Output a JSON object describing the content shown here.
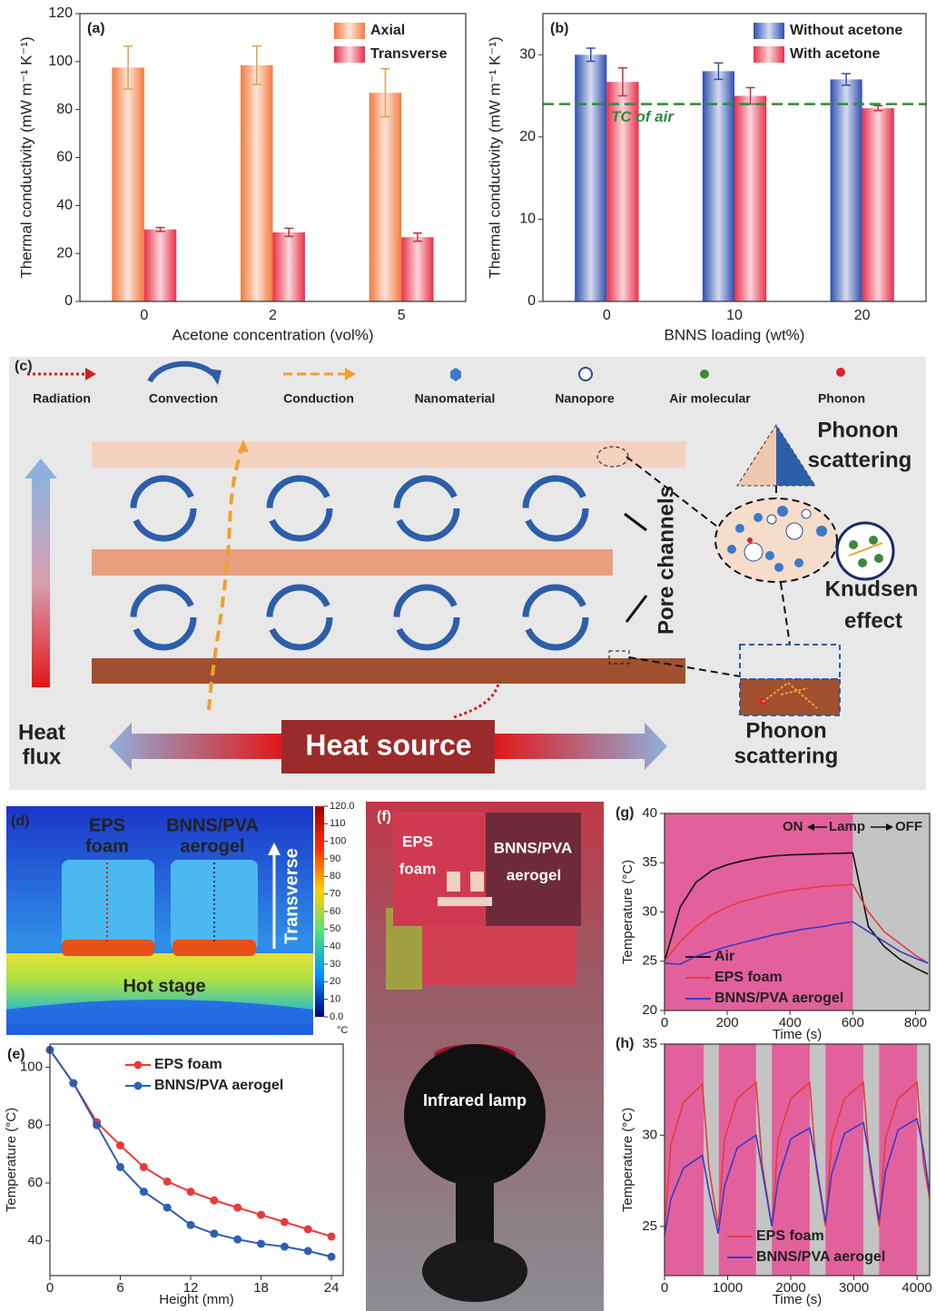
{
  "chart_data": [
    {
      "type": "bar",
      "panel_label": "(a)",
      "x_label": "Acetone concentration (vol%)",
      "y_label": "Thermal conductivity (mW m⁻¹ K⁻¹)",
      "categories": [
        "0",
        "2",
        "5"
      ],
      "series": [
        {
          "name": "Axial",
          "color": "#f47a3c",
          "error_color": "#e0a050",
          "values": [
            97.5,
            98.5,
            87
          ],
          "errors": [
            9,
            8,
            10
          ]
        },
        {
          "name": "Transverse",
          "color": "#e8304a",
          "error_color": "#c03040",
          "values": [
            30,
            28.8,
            26.8
          ],
          "errors": [
            0.8,
            1.7,
            1.7
          ]
        }
      ],
      "ylim": [
        0,
        120
      ],
      "yticks": [
        0,
        20,
        40,
        60,
        80,
        100,
        120
      ],
      "legend": "upper right"
    },
    {
      "type": "bar",
      "panel_label": "(b)",
      "x_label": "BNNS loading (wt%)",
      "y_label": "Thermal conductivity (mW m⁻¹ K⁻¹)",
      "categories": [
        "0",
        "10",
        "20"
      ],
      "series": [
        {
          "name": "Without acetone",
          "color": "#2f4fb0",
          "error_color": "#2f4fb0",
          "values": [
            30,
            28,
            27
          ],
          "errors": [
            0.8,
            1,
            0.7
          ]
        },
        {
          "name": "With acetone",
          "color": "#e8304a",
          "error_color": "#c03040",
          "values": [
            26.7,
            25,
            23.5
          ],
          "errors": [
            1.7,
            1,
            0.3
          ]
        }
      ],
      "reference_line": {
        "value": 24,
        "label": "TC of air",
        "color": "#2e8b3a"
      },
      "ylim": [
        0,
        35
      ],
      "yticks": [
        0,
        10,
        20,
        30
      ],
      "legend": "upper right"
    },
    {
      "type": "line",
      "panel_label": "(e)",
      "x_label": "Height (mm)",
      "y_label": "Temperature (°C)",
      "x": [
        0,
        2,
        4,
        6,
        8,
        10,
        12,
        14,
        16,
        18,
        20,
        22,
        24
      ],
      "series": [
        {
          "name": "EPS foam",
          "color": "#e83a3a",
          "values": [
            106,
            94.5,
            81,
            73,
            65.5,
            60.5,
            57,
            54,
            51.5,
            49,
            46.5,
            44,
            41.5
          ]
        },
        {
          "name": "BNNS/PVA aerogel",
          "color": "#2f5fb0",
          "values": [
            106,
            94.5,
            80,
            65.5,
            57,
            51.5,
            45.5,
            42.5,
            40.5,
            39,
            38,
            36.5,
            34.5
          ]
        }
      ],
      "markers": true,
      "xlim": [
        0,
        25
      ],
      "xticks": [
        0,
        6,
        12,
        18,
        24
      ],
      "ylim": [
        28,
        108
      ],
      "yticks": [
        40,
        60,
        80,
        100
      ],
      "legend": "upper right"
    },
    {
      "type": "line",
      "panel_label": "(g)",
      "x_label": "Time (s)",
      "y_label": "Temperature (°C)",
      "x": [
        0,
        50,
        100,
        150,
        200,
        250,
        300,
        350,
        400,
        450,
        500,
        550,
        600,
        650,
        700,
        750,
        800,
        840
      ],
      "series": [
        {
          "name": "Air",
          "color": "#111111",
          "values": [
            25,
            30.5,
            33,
            34.2,
            34.8,
            35.2,
            35.5,
            35.7,
            35.8,
            35.85,
            35.9,
            35.95,
            36,
            28.5,
            26.5,
            25.2,
            24.3,
            23.7
          ]
        },
        {
          "name": "EPS foam",
          "color": "#e83a3a",
          "values": [
            25,
            27,
            28.5,
            29.7,
            30.5,
            31.1,
            31.5,
            31.9,
            32.2,
            32.4,
            32.6,
            32.7,
            32.8,
            30,
            28,
            26.8,
            25.6,
            24.8
          ]
        },
        {
          "name": "BNNS/PVA aerogel",
          "color": "#3a3ac8",
          "values": [
            24.8,
            24.7,
            25.5,
            26,
            26.5,
            26.9,
            27.3,
            27.7,
            28,
            28.3,
            28.5,
            28.8,
            29,
            28,
            27,
            26,
            25.3,
            24.8
          ]
        }
      ],
      "shaded_regions": [
        {
          "from": 0,
          "to": 600,
          "color": "#e2619c"
        }
      ],
      "background": "#c4c4c4",
      "annotation": {
        "on": "ON",
        "lamp": "Lamp",
        "off": "OFF"
      },
      "xlim": [
        0,
        845
      ],
      "xticks": [
        0,
        200,
        400,
        600,
        800
      ],
      "ylim": [
        20,
        40
      ],
      "yticks": [
        20,
        25,
        30,
        35,
        40
      ],
      "legend": "lower left"
    },
    {
      "type": "line",
      "panel_label": "(h)",
      "x_label": "Time (s)",
      "y_label": "Temperature (°C)",
      "x": [
        0,
        100,
        300,
        600,
        700,
        850,
        950,
        1150,
        1450,
        1550,
        1700,
        1800,
        2000,
        2300,
        2400,
        2550,
        2650,
        2850,
        3150,
        3250,
        3400,
        3500,
        3700,
        4000,
        4100,
        4200
      ],
      "series": [
        {
          "name": "EPS foam",
          "color": "#e83a3a",
          "values": [
            24.8,
            29.5,
            31.8,
            32.8,
            28.3,
            25.0,
            29.8,
            32.0,
            32.9,
            28.3,
            25.0,
            29.8,
            32.0,
            32.9,
            28.3,
            25.0,
            29.8,
            32.0,
            32.9,
            28.3,
            25.0,
            29.8,
            32.0,
            32.9,
            28.5,
            26.5
          ]
        },
        {
          "name": "BNNS/PVA aerogel",
          "color": "#3a3ac8",
          "values": [
            24.5,
            26.5,
            28.2,
            28.9,
            27.0,
            24.6,
            27.2,
            29.3,
            30.0,
            28.0,
            25.0,
            27.6,
            29.8,
            30.4,
            28.5,
            25.2,
            27.9,
            30.1,
            30.7,
            28.7,
            25.3,
            28.0,
            30.3,
            30.9,
            29.2,
            26.8
          ]
        }
      ],
      "shaded_regions": [
        {
          "from": 0,
          "to": 620,
          "color": "#e2619c"
        },
        {
          "from": 860,
          "to": 1450,
          "color": "#e2619c"
        },
        {
          "from": 1700,
          "to": 2300,
          "color": "#e2619c"
        },
        {
          "from": 2550,
          "to": 3150,
          "color": "#e2619c"
        },
        {
          "from": 3400,
          "to": 4000,
          "color": "#e2619c"
        }
      ],
      "background": "#c4c4c4",
      "xlim": [
        0,
        4200
      ],
      "xticks": [
        0,
        1000,
        2000,
        3000,
        4000
      ],
      "ylim": [
        22.3,
        35
      ],
      "yticks": [
        25,
        30,
        35
      ],
      "legend": "lower right"
    }
  ],
  "diagram": {
    "panel_label": "(c)",
    "legend": [
      "Radiation",
      "Convection",
      "Conduction",
      "Nanomaterial",
      "Nanopore",
      "Air molecular",
      "Phonon"
    ],
    "heat_flux": [
      "Heat",
      "flux"
    ],
    "heat_source": "Heat source",
    "pore_channels": "Pore channels",
    "phonon_scattering_top": [
      "Phonon",
      "scattering"
    ],
    "knudsen_effect": [
      "Knudsen",
      "effect"
    ],
    "phonon_scattering_bottom": [
      "Phonon",
      "scattering"
    ]
  },
  "thermal_image": {
    "panel_label": "(d)",
    "eps": [
      "EPS",
      "foam"
    ],
    "bnns": [
      "BNNS/PVA",
      "aerogel"
    ],
    "arrow_label": "Transverse",
    "stage": "Hot stage",
    "colorbar_unit": "°C",
    "colorbar_lim": [
      0,
      120
    ],
    "colorbar_ticks": [
      {
        "value": 120,
        "label": "120.0"
      },
      {
        "value": 110,
        "label": "110"
      },
      {
        "value": 100,
        "label": "100"
      },
      {
        "value": 90,
        "label": "90"
      },
      {
        "value": 80,
        "label": "80"
      },
      {
        "value": 70,
        "label": "70"
      },
      {
        "value": 60,
        "label": "60"
      },
      {
        "value": 50,
        "label": "50"
      },
      {
        "value": 40,
        "label": "40"
      },
      {
        "value": 30,
        "label": "30"
      },
      {
        "value": 20,
        "label": "20"
      },
      {
        "value": 10,
        "label": "10"
      },
      {
        "value": 0,
        "label": "0.0"
      }
    ]
  },
  "photo": {
    "panel_label": "(f)",
    "eps": [
      "EPS",
      "foam"
    ],
    "bnns": [
      "BNNS/PVA",
      "aerogel"
    ],
    "lamp": "Infrared lamp"
  }
}
